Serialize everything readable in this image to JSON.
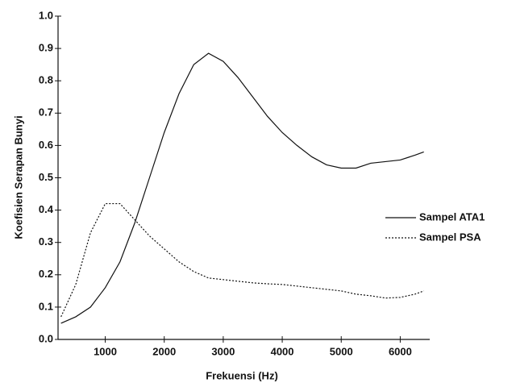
{
  "chart_data": {
    "type": "line",
    "x_label": "Frekuensi (Hz)",
    "y_label": "Koefisien Serapan Bunyi",
    "x": [
      250,
      500,
      750,
      1000,
      1250,
      1500,
      1750,
      2000,
      2250,
      2500,
      2750,
      3000,
      3250,
      3500,
      3750,
      4000,
      4250,
      4500,
      4750,
      5000,
      5250,
      5500,
      5750,
      6000,
      6250,
      6400
    ],
    "series": [
      {
        "name": "Sampel ATA1",
        "color": "#111111",
        "dash": "solid",
        "values": [
          0.05,
          0.07,
          0.1,
          0.16,
          0.24,
          0.36,
          0.5,
          0.64,
          0.76,
          0.85,
          0.885,
          0.86,
          0.81,
          0.75,
          0.69,
          0.64,
          0.6,
          0.565,
          0.54,
          0.53,
          0.53,
          0.545,
          0.55,
          0.555,
          0.57,
          0.58
        ]
      },
      {
        "name": "Sampel PSA",
        "color": "#111111",
        "dash": "dotted",
        "values": [
          0.07,
          0.17,
          0.33,
          0.42,
          0.42,
          0.37,
          0.32,
          0.28,
          0.24,
          0.21,
          0.19,
          0.185,
          0.18,
          0.175,
          0.172,
          0.17,
          0.165,
          0.16,
          0.155,
          0.15,
          0.14,
          0.135,
          0.128,
          0.13,
          0.14,
          0.15
        ]
      }
    ],
    "xlim": [
      200,
      6500
    ],
    "xticks": [
      1000,
      2000,
      3000,
      4000,
      5000,
      6000
    ],
    "ylim": [
      0,
      1
    ],
    "yticks": [
      {
        "value": 0,
        "label": "0.0"
      },
      0.1,
      0.2,
      0.3,
      0.4,
      0.5,
      0.6,
      0.7,
      0.8,
      0.9,
      {
        "value": 1,
        "label": "1.0"
      }
    ],
    "grid": false,
    "legend": "right"
  }
}
